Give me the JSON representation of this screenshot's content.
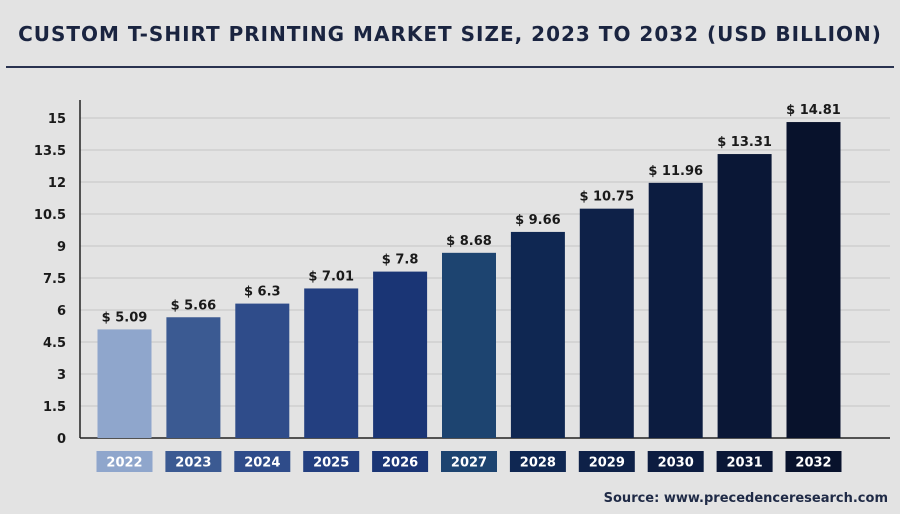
{
  "chart_data": {
    "type": "bar",
    "title": "CUSTOM T-SHIRT PRINTING MARKET SIZE, 2023 TO 2032 (USD BILLION)",
    "categories": [
      "2022",
      "2023",
      "2024",
      "2025",
      "2026",
      "2027",
      "2028",
      "2029",
      "2030",
      "2031",
      "2032"
    ],
    "values": [
      5.09,
      5.66,
      6.3,
      7.01,
      7.8,
      8.68,
      9.66,
      10.75,
      11.96,
      13.31,
      14.81
    ],
    "data_labels": [
      "$ 5.09",
      "$ 5.66",
      "$ 6.3",
      "$ 7.01",
      "$ 7.8",
      "$ 8.68",
      "$ 9.66",
      "$ 10.75",
      "$ 11.96",
      "$ 13.31",
      "$ 14.81"
    ],
    "y_ticks": [
      "0",
      "1.5",
      "3",
      "4.5",
      "6",
      "7.5",
      "9",
      "10.5",
      "12",
      "13.5",
      "15"
    ],
    "ylim": [
      0,
      15
    ],
    "grid": true,
    "xlabel": "",
    "ylabel": "",
    "bar_colors": [
      "#8fa6cc",
      "#3b5a92",
      "#2f4c8a",
      "#233f80",
      "#1a3575",
      "#1d4470",
      "#0f2752",
      "#0e2148",
      "#0c1c40",
      "#0a1736",
      "#08122c"
    ]
  },
  "source": "Source: www.precedenceresearch.com"
}
